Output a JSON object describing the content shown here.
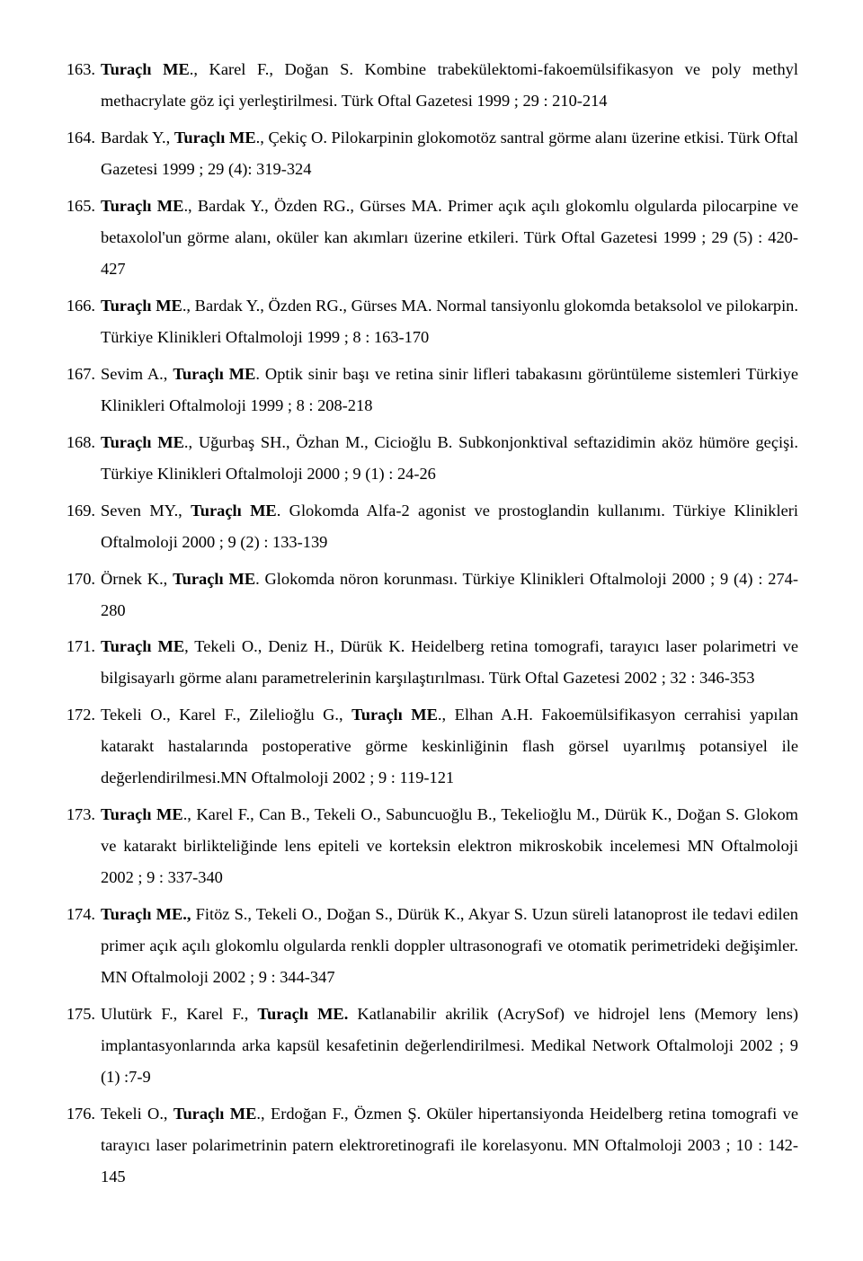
{
  "references": [
    {
      "num": "163.",
      "parts": [
        {
          "t": "Turaçlı ME",
          "b": true
        },
        {
          "t": "., Karel F., Doğan S. Kombine trabekülektomi-fakoemülsifikasyon ve poly methyl methacrylate göz içi yerleştirilmesi. Türk Oftal Gazetesi  1999 ; 29 : 210-214"
        }
      ]
    },
    {
      "num": "164.",
      "parts": [
        {
          "t": "Bardak Y., "
        },
        {
          "t": "Turaçlı ME",
          "b": true
        },
        {
          "t": "., Çekiç O. Pilokarpinin glokomotöz santral görme alanı üzerine etkisi. Türk Oftal Gazetesi  1999 ; 29 (4): 319-324"
        }
      ]
    },
    {
      "num": "165.",
      "parts": [
        {
          "t": "Turaçlı ME",
          "b": true
        },
        {
          "t": "., Bardak Y., Özden RG., Gürses MA. Primer açık açılı glokomlu olgularda pilocarpine ve betaxolol'un görme alanı, oküler kan akımları üzerine etkileri. Türk Oftal Gazetesi 1999 ; 29 (5) : 420-427"
        }
      ]
    },
    {
      "num": "166.",
      "parts": [
        {
          "t": "Turaçlı ME",
          "b": true
        },
        {
          "t": "., Bardak Y., Özden RG., Gürses MA. Normal tansiyonlu glokomda betaksolol ve pilokarpin. Türkiye Klinikleri Oftalmoloji 1999 ;  8 : 163-170"
        }
      ]
    },
    {
      "num": "167.",
      "parts": [
        {
          "t": "Sevim A., "
        },
        {
          "t": "Turaçlı ME",
          "b": true
        },
        {
          "t": ". Optik sinir başı ve retina sinir lifleri tabakasını görüntüleme sistemleri Türkiye Klinikleri Oftalmoloji 1999 ;  8 : 208-218"
        }
      ]
    },
    {
      "num": "168.",
      "parts": [
        {
          "t": "Turaçlı ME",
          "b": true
        },
        {
          "t": "., Uğurbaş SH., Özhan M., Cicioğlu B. Subkonjonktival seftazidimin aköz hümöre geçişi. Türkiye Klinikleri Oftalmoloji 2000 ; 9 (1) : 24-26"
        }
      ]
    },
    {
      "num": "169.",
      "parts": [
        {
          "t": "Seven MY., "
        },
        {
          "t": "Turaçlı ME",
          "b": true
        },
        {
          "t": ". Glokomda Alfa-2 agonist ve prostoglandin kullanımı. Türkiye Klinikleri Oftalmoloji 2000 ; 9 (2) : 133-139"
        }
      ]
    },
    {
      "num": "170.",
      "parts": [
        {
          "t": "Örnek K., "
        },
        {
          "t": "Turaçlı ME",
          "b": true
        },
        {
          "t": ". Glokomda nöron korunması. Türkiye Klinikleri Oftalmoloji 2000 ; 9 (4) : 274-280"
        }
      ]
    },
    {
      "num": "171.",
      "parts": [
        {
          "t": "Turaçlı ME",
          "b": true
        },
        {
          "t": ", Tekeli O., Deniz H., Dürük K. Heidelberg retina tomografi, tarayıcı laser polarimetri ve bilgisayarlı görme alanı parametrelerinin karşılaştırılması. Türk Oftal Gazetesi 2002 ; 32 : 346-353"
        }
      ]
    },
    {
      "num": "172.",
      "parts": [
        {
          "t": "Tekeli O., Karel F., Zilelioğlu G., "
        },
        {
          "t": "Turaçlı ME",
          "b": true
        },
        {
          "t": "., Elhan A.H. Fakoemülsifikasyon cerrahisi yapılan katarakt hastalarında postoperative görme keskinliğinin flash görsel uyarılmış potansiyel ile değerlendirilmesi.MN Oftalmoloji 2002 ; 9 : 119-121"
        }
      ]
    },
    {
      "num": "173.",
      "parts": [
        {
          "t": "Turaçlı ME",
          "b": true
        },
        {
          "t": "., Karel F., Can B., Tekeli O., Sabuncuoğlu B., Tekelioğlu M., Dürük K., Doğan S. Glokom ve katarakt birlikteliğinde lens epiteli ve korteksin elektron mikroskobik incelemesi MN Oftalmoloji 2002 ;  9 : 337-340"
        }
      ]
    },
    {
      "num": "174.",
      "parts": [
        {
          "t": "Turaçlı ME.,",
          "b": true
        },
        {
          "t": " Fitöz S., Tekeli O., Doğan S., Dürük K., Akyar S.  Uzun süreli latanoprost ile tedavi edilen primer açık açılı glokomlu olgularda renkli doppler ultrasonografi ve otomatik perimetrideki değişimler. MN Oftalmoloji 2002 ;  9 : 344-347"
        }
      ]
    },
    {
      "num": "175.",
      "parts": [
        {
          "t": "Ulutürk F., Karel F., "
        },
        {
          "t": "Turaçlı ME.",
          "b": true
        },
        {
          "t": " Katlanabilir akrilik (AcrySof) ve hidrojel lens (Memory lens) implantasyonlarında arka kapsül kesafetinin değerlendirilmesi. Medikal Network Oftalmoloji 2002 ; 9 (1) :7-9"
        }
      ]
    },
    {
      "num": "176.",
      "parts": [
        {
          "t": "Tekeli O., "
        },
        {
          "t": "Turaçlı ME",
          "b": true
        },
        {
          "t": "., Erdoğan F., Özmen Ş. Oküler hipertansiyonda Heidelberg retina tomografi ve tarayıcı laser polarimetrinin patern elektroretinografi ile korelasyonu. MN Oftalmoloji 2003 ;  10 : 142-145"
        }
      ]
    }
  ]
}
